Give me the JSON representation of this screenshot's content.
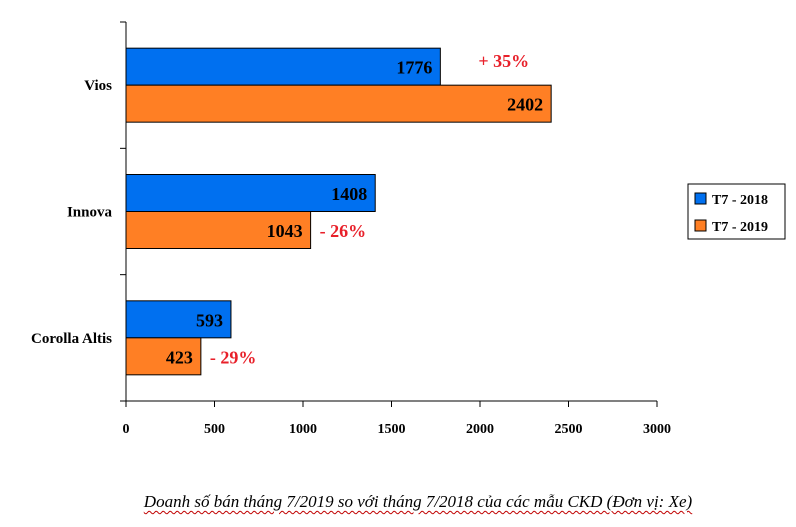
{
  "chart_data": {
    "type": "bar",
    "orientation": "horizontal",
    "categories": [
      "Vios",
      "Innova",
      "Corolla Altis"
    ],
    "series": [
      {
        "name": "T7 - 2018",
        "color": "#0070F0",
        "values": [
          1776,
          1408,
          593
        ]
      },
      {
        "name": "T7 - 2019",
        "color": "#FF7F24",
        "values": [
          2402,
          1043,
          423
        ]
      }
    ],
    "changes": [
      "+ 35%",
      "- 26%",
      "- 29%"
    ],
    "change_color": "#E8202A",
    "xlim": [
      0,
      3000
    ],
    "xticks": [
      0,
      500,
      1000,
      1500,
      2000,
      2500,
      3000
    ],
    "grid": false,
    "legend_position": "right",
    "caption": "Doanh số bán tháng 7/2019 so với tháng 7/2018 của các mẫu CKD (Đơn vị: Xe)"
  }
}
